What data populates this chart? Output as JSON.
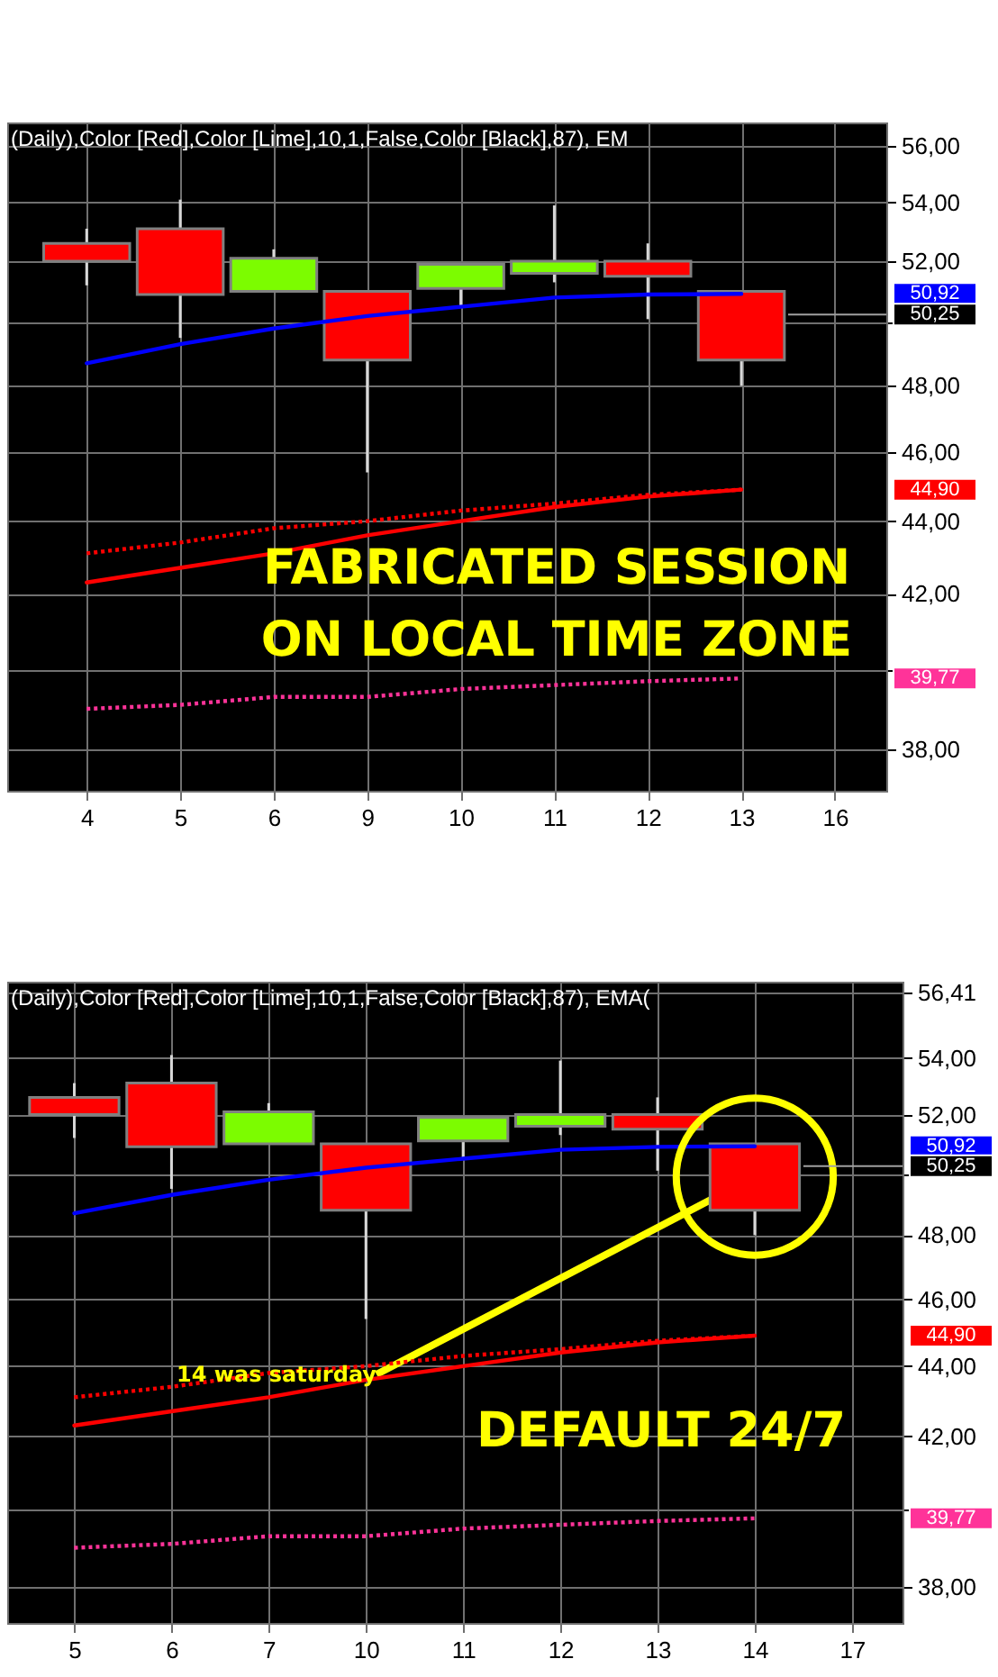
{
  "chart_data": [
    {
      "type": "candlestick",
      "title": "(Daily),Color [Red],Color [Lime],10,1,False,Color [Black],87), EM",
      "categories": [
        "4",
        "5",
        "6",
        "9",
        "10",
        "11",
        "12",
        "13",
        "16"
      ],
      "ohlc": [
        [
          52.6,
          53.1,
          51.2,
          52.0
        ],
        [
          53.1,
          54.1,
          49.5,
          50.9
        ],
        [
          51.0,
          52.4,
          51.0,
          52.1
        ],
        [
          51.0,
          51.0,
          45.4,
          48.8
        ],
        [
          51.1,
          51.9,
          50.5,
          51.9
        ],
        [
          51.6,
          53.9,
          51.3,
          52.0
        ],
        [
          52.0,
          52.6,
          50.1,
          51.5
        ],
        [
          51.0,
          51.0,
          48.0,
          48.8
        ],
        null
      ],
      "colors": [
        "#ff0000",
        "#ff0000",
        "#7cfc00",
        "#ff0000",
        "#7cfc00",
        "#7cfc00",
        "#ff0000",
        "#ff0000",
        null
      ],
      "series": [
        {
          "type": "line",
          "color": "#0000ff",
          "line_style": "solid",
          "values": [
            48.7,
            49.3,
            49.8,
            50.2,
            50.5,
            50.8,
            50.9,
            50.92,
            null
          ]
        },
        {
          "type": "line",
          "color": "#ff0000",
          "line_style": "solid",
          "values": [
            42.3,
            42.7,
            43.1,
            43.6,
            44.0,
            44.4,
            44.7,
            44.9,
            null
          ]
        },
        {
          "type": "line",
          "color": "#ff0000",
          "line_style": "dotted",
          "values": [
            43.1,
            43.4,
            43.8,
            44.0,
            44.3,
            44.5,
            44.75,
            44.9,
            null
          ]
        },
        {
          "type": "line",
          "color": "#ff3399",
          "line_style": "dotted",
          "values": [
            39.0,
            39.1,
            39.3,
            39.3,
            39.5,
            39.6,
            39.7,
            39.77,
            null
          ]
        }
      ],
      "ylim": [
        37.0,
        56.85
      ],
      "log": true,
      "yticks": [
        {
          "value": 38,
          "label": "38,00"
        },
        {
          "value": 40,
          "label": null
        },
        {
          "value": 42,
          "label": "42,00"
        },
        {
          "value": 44,
          "label": "44,00"
        },
        {
          "value": 46,
          "label": "46,00"
        },
        {
          "value": 48,
          "label": "48,00"
        },
        {
          "value": 50,
          "label": null
        },
        {
          "value": 52,
          "label": "52,00"
        },
        {
          "value": 54,
          "label": "54,00"
        },
        {
          "value": 56,
          "label": "56,00"
        }
      ],
      "ref_lines": [
        {
          "axis": "y",
          "value": 50.25,
          "label": "50,25",
          "color": "#a0a0a0"
        }
      ],
      "grid": true,
      "annotations": [
        "FABRICATED SESSION\nON LOCAL TIME ZONE",
        "50,92",
        "44,90",
        "39,77"
      ]
    },
    {
      "type": "candlestick",
      "title": "(Daily),Color [Red],Color [Lime],10,1,False,Color [Black],87), EMA(",
      "categories": [
        "5",
        "6",
        "7",
        "10",
        "11",
        "12",
        "13",
        "14",
        "17"
      ],
      "ohlc": [
        [
          52.6,
          53.1,
          51.2,
          52.0
        ],
        [
          53.1,
          54.1,
          49.5,
          50.9
        ],
        [
          51.0,
          52.4,
          51.0,
          52.1
        ],
        [
          51.0,
          51.0,
          45.4,
          48.8
        ],
        [
          51.1,
          51.9,
          50.5,
          51.9
        ],
        [
          51.6,
          53.9,
          51.3,
          52.0
        ],
        [
          52.0,
          52.6,
          50.1,
          51.5
        ],
        [
          51.0,
          51.0,
          48.0,
          48.8
        ],
        null
      ],
      "colors": [
        "#ff0000",
        "#ff0000",
        "#7cfc00",
        "#ff0000",
        "#7cfc00",
        "#7cfc00",
        "#ff0000",
        "#ff0000",
        null
      ],
      "series": [
        {
          "type": "line",
          "color": "#0000ff",
          "line_style": "solid",
          "values": [
            48.7,
            49.3,
            49.8,
            50.2,
            50.5,
            50.8,
            50.9,
            50.92,
            null
          ]
        },
        {
          "type": "line",
          "color": "#ff0000",
          "line_style": "solid",
          "values": [
            42.3,
            42.7,
            43.1,
            43.6,
            44.0,
            44.4,
            44.7,
            44.9,
            null
          ]
        },
        {
          "type": "line",
          "color": "#ff0000",
          "line_style": "dotted",
          "values": [
            43.1,
            43.4,
            43.8,
            44.0,
            44.3,
            44.5,
            44.75,
            44.9,
            null
          ]
        },
        {
          "type": "line",
          "color": "#ff3399",
          "line_style": "dotted",
          "values": [
            39.0,
            39.1,
            39.3,
            39.3,
            39.5,
            39.6,
            39.7,
            39.77,
            null
          ]
        }
      ],
      "ylim": [
        37.1,
        56.8
      ],
      "log": true,
      "yticks": [
        {
          "value": 38,
          "label": "38,00"
        },
        {
          "value": 40,
          "label": null
        },
        {
          "value": 42,
          "label": "42,00"
        },
        {
          "value": 44,
          "label": "44,00"
        },
        {
          "value": 46,
          "label": "46,00"
        },
        {
          "value": 48,
          "label": "48,00"
        },
        {
          "value": 50,
          "label": null
        },
        {
          "value": 52,
          "label": "52,00"
        },
        {
          "value": 54,
          "label": "54,00"
        },
        {
          "value": 56.41,
          "label": "56,41"
        }
      ],
      "ref_lines": [
        {
          "axis": "y",
          "value": 50.25,
          "label": "50,25",
          "color": "#a0a0a0"
        }
      ],
      "grid": true,
      "annotations": [
        {
          "text": "14 was saturday",
          "x": "14",
          "y": 49.9
        },
        "DEFAULT 24/7",
        "50,92",
        "44,90",
        "39,77"
      ]
    }
  ]
}
